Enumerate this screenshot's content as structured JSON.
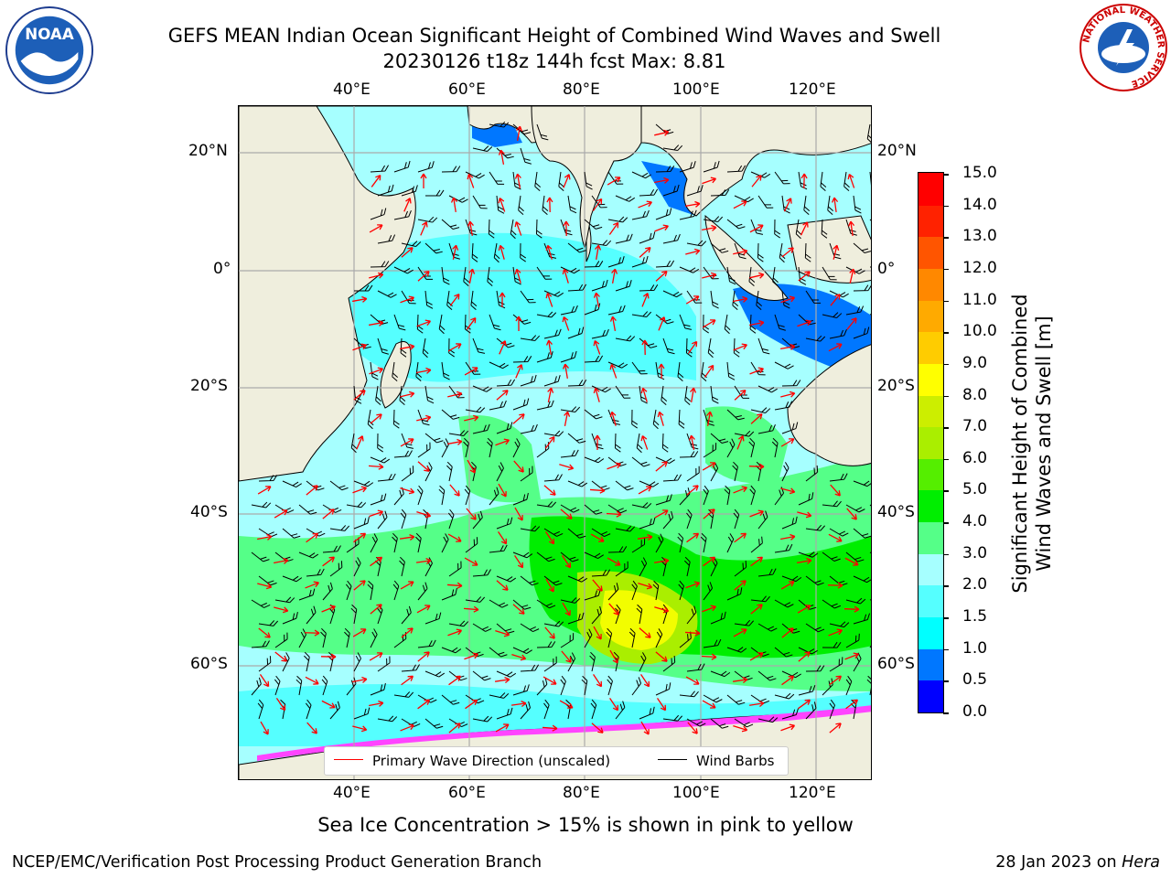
{
  "title": {
    "line1": "GEFS MEAN Indian Ocean Significant Height of Combined Wind Waves and Swell",
    "line2": "20230126 t18z 144h fcst   Max: 8.81"
  },
  "logos": {
    "left": "noaa-logo",
    "right": "nws-logo",
    "left_text": "NOAA",
    "right_text": "NATIONAL WEATHER SERVICE"
  },
  "map": {
    "lon_ticks_top": [
      "40°E",
      "60°E",
      "80°E",
      "100°E",
      "120°E"
    ],
    "lon_ticks_bottom": [
      "40°E",
      "60°E",
      "80°E",
      "100°E",
      "120°E"
    ],
    "lat_ticks_left": [
      "20°N",
      "0°",
      "20°S",
      "40°S",
      "60°S"
    ],
    "lat_ticks_right": [
      "20°N",
      "0°",
      "20°S",
      "40°S",
      "60°S"
    ],
    "lon_range": [
      20,
      130
    ],
    "lat_range": [
      -70,
      25
    ],
    "colors": {
      "land": "#efeedd",
      "coast": "#000000",
      "grid": "#aaaaaa",
      "wave_arrow": "#ff0000",
      "wind_barb": "#000000",
      "sea_ice": "#ff44ff"
    }
  },
  "colorbar": {
    "label_line1": "Significant Height of Combined",
    "label_line2": "Wind Waves and Swell [m]",
    "ticks": [
      "15.0",
      "14.0",
      "13.0",
      "12.0",
      "11.0",
      "10.0",
      "9.0",
      "8.0",
      "7.0",
      "6.0",
      "5.0",
      "4.0",
      "3.0",
      "2.0",
      "1.5",
      "1.0",
      "0.5",
      "0.0"
    ],
    "colors_bottom_to_top": [
      "#0000ff",
      "#0077ff",
      "#00ffff",
      "#55ffff",
      "#a6ffff",
      "#55ff88",
      "#00ee00",
      "#55ee00",
      "#aaee00",
      "#ccee00",
      "#ffff00",
      "#ffcc00",
      "#ffaa00",
      "#ff8800",
      "#ff5500",
      "#ff2200",
      "#ff0000"
    ]
  },
  "legend": {
    "item1": "Primary Wave Direction (unscaled)",
    "item1_color": "#ff0000",
    "item2": "Wind Barbs",
    "item2_color": "#000000"
  },
  "caption": "Sea Ice Concentration > 15% is shown in pink to yellow",
  "footer": {
    "left": "NCEP/EMC/Verification Post Processing Product Generation Branch",
    "right_prefix": "28 Jan 2023 on ",
    "right_host": "Hera"
  }
}
